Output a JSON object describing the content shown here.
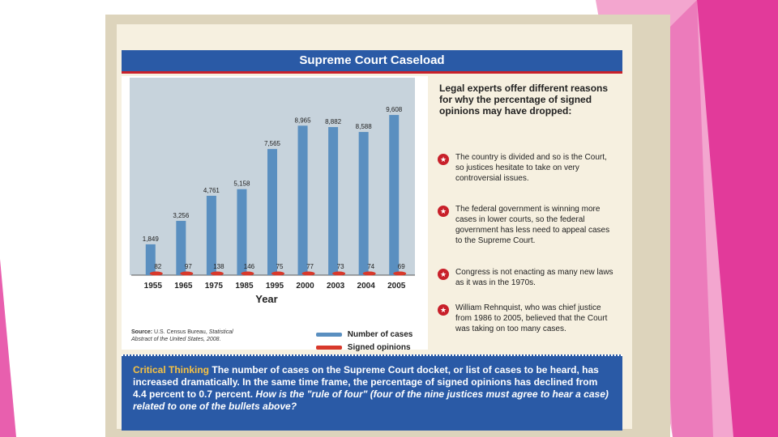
{
  "banner": {
    "title": "Supreme Court Caseload"
  },
  "chart_data": {
    "type": "bar",
    "categories": [
      "1955",
      "1965",
      "1975",
      "1985",
      "1995",
      "2000",
      "2003",
      "2004",
      "2005"
    ],
    "series": [
      {
        "name": "Number of cases",
        "values": [
          1849,
          3256,
          4761,
          5158,
          7565,
          8965,
          8882,
          8588,
          9608
        ],
        "labels": [
          "1,849",
          "3,256",
          "4,761",
          "5,158",
          "7,565",
          "8,965",
          "8,882",
          "8,588",
          "9,608"
        ]
      },
      {
        "name": "Signed opinions",
        "values": [
          82,
          97,
          138,
          146,
          75,
          77,
          73,
          74,
          69
        ],
        "labels": [
          "82",
          "97",
          "138",
          "146",
          "75",
          "77",
          "73",
          "74",
          "69"
        ]
      }
    ],
    "xlabel": "Year",
    "ylim": [
      0,
      10000
    ],
    "grid": false,
    "legend": "bottom-right"
  },
  "source": {
    "label": "Source:",
    "text": "U.S. Census Bureau,",
    "italic": "Statistical Abstract of the United States, 2008."
  },
  "explanations": {
    "intro": "Legal experts offer different reasons for why the percentage of signed opinions may have dropped:",
    "items": [
      "The country is divided and so is the Court, so justices hesitate to take on very controversial issues.",
      "The federal government is winning more cases in lower courts, so the federal government has less need to appeal cases to the Supreme Court.",
      "Congress is not enacting as many new laws as it was in the 1970s.",
      "William Rehnquist, who was chief justice from 1986 to 2005, believed that the Court was taking on too many cases."
    ]
  },
  "critical_thinking": {
    "heading": "Critical Thinking",
    "text": "The number of cases on the Supreme Court docket, or list of cases to be heard, has increased dramatically. In the same time frame, the percentage of signed opinions has declined from 4.4 percent to 0.7 percent.",
    "question": "How is the \"rule of four\" (four of the nine justices must agree to hear a case) related to one of the bullets above?"
  },
  "colors": {
    "banner": "#2a5aa6",
    "bar_cases": "#5a8fc0",
    "bar_opinions": "#d8392b",
    "accent_red": "#c8202a"
  }
}
